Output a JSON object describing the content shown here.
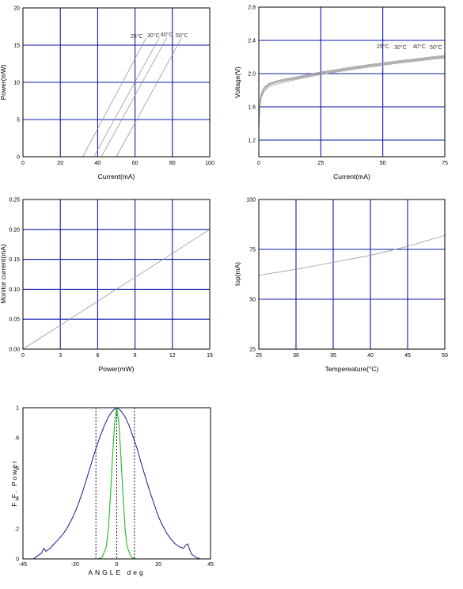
{
  "chart_data": [
    {
      "type": "line",
      "xlabel": "Current(mA)",
      "ylabel": "Power(mW)",
      "xlim": [
        0,
        100
      ],
      "ylim": [
        0,
        20
      ],
      "xticks": [
        "0",
        "20",
        "40",
        "60",
        "80",
        "100"
      ],
      "yticks": [
        "0",
        "5",
        "10",
        "15",
        "20"
      ],
      "series": [
        {
          "name": "25°C",
          "x": [
            32,
            66
          ],
          "y": [
            0,
            16
          ]
        },
        {
          "name": "30°C",
          "x": [
            38,
            73
          ],
          "y": [
            0,
            16
          ]
        },
        {
          "name": "40°C",
          "x": [
            42,
            77
          ],
          "y": [
            0,
            16
          ]
        },
        {
          "name": "50°C",
          "x": [
            50,
            85
          ],
          "y": [
            0,
            16
          ]
        }
      ]
    },
    {
      "type": "line",
      "xlabel": "Current(mA)",
      "ylabel": "Voltage(V)",
      "xlim": [
        0,
        75
      ],
      "ylim": [
        1.0,
        2.8
      ],
      "xticks": [
        "0",
        "25",
        "50",
        "75"
      ],
      "yticks": [
        "1.2",
        "1.6",
        "2.0",
        "2.4",
        "2.8"
      ],
      "series": [
        {
          "name": "25°C",
          "x": [
            0,
            0.3,
            0.6,
            1,
            2,
            4,
            8,
            15,
            25,
            40,
            55,
            75
          ],
          "y": [
            1.35,
            1.6,
            1.7,
            1.76,
            1.83,
            1.88,
            1.92,
            1.96,
            2.02,
            2.09,
            2.15,
            2.22
          ]
        },
        {
          "name": "30°C",
          "x": [
            0,
            0.3,
            0.6,
            1,
            2,
            4,
            8,
            15,
            25,
            40,
            55,
            75
          ],
          "y": [
            1.34,
            1.58,
            1.68,
            1.75,
            1.82,
            1.87,
            1.91,
            1.95,
            2.01,
            2.08,
            2.14,
            2.21
          ]
        },
        {
          "name": "40°C",
          "x": [
            0,
            0.3,
            0.6,
            1,
            2,
            4,
            8,
            15,
            25,
            40,
            55,
            75
          ],
          "y": [
            1.33,
            1.56,
            1.66,
            1.73,
            1.8,
            1.86,
            1.9,
            1.94,
            2.0,
            2.07,
            2.13,
            2.2
          ]
        },
        {
          "name": "50°C",
          "x": [
            0,
            0.3,
            0.6,
            1,
            2,
            4,
            8,
            15,
            25,
            40,
            55,
            75
          ],
          "y": [
            1.32,
            1.54,
            1.64,
            1.71,
            1.78,
            1.84,
            1.88,
            1.93,
            1.99,
            2.06,
            2.12,
            2.19
          ]
        }
      ]
    },
    {
      "type": "line",
      "xlabel": "Power(mW)",
      "ylabel": "Monitor current(mA)",
      "xlim": [
        0,
        15
      ],
      "ylim": [
        0,
        0.25
      ],
      "xticks": [
        "0",
        "3",
        "6",
        "9",
        "12",
        "15"
      ],
      "yticks": [
        "0.00",
        "0.05",
        "0.10",
        "0.15",
        "0.20",
        "0.25"
      ],
      "series": [
        {
          "x": [
            0,
            15
          ],
          "y": [
            0,
            0.2
          ]
        }
      ]
    },
    {
      "type": "line",
      "xlabel": "Tempereature(°C)",
      "ylabel": "Iop(mA)",
      "xlim": [
        25,
        50
      ],
      "ylim": [
        25,
        100
      ],
      "xticks": [
        "25",
        "30",
        "35",
        "40",
        "45",
        "50"
      ],
      "yticks": [
        "25",
        "50",
        "75",
        "100"
      ],
      "series": [
        {
          "x": [
            25,
            30,
            35,
            40,
            45,
            50
          ],
          "y": [
            62,
            65,
            68.5,
            72,
            76.5,
            82
          ]
        }
      ]
    },
    {
      "type": "line",
      "xlabel": "ANGLE deg",
      "ylabel": "F.F. Power",
      "xlim": [
        -45,
        45
      ],
      "ylim": [
        0,
        1
      ],
      "xticks": [
        "-45",
        "-20",
        "0",
        "20",
        "45"
      ],
      "yticks": [
        "0",
        ".2",
        ".4",
        ".6",
        ".8",
        "1"
      ],
      "vlines": [
        -10,
        0,
        8.5
      ],
      "series": [
        {
          "x": [
            -43,
            -40,
            -38,
            -36,
            -35,
            -34,
            -32,
            -30,
            -28,
            -26,
            -24,
            -22,
            -20,
            -18,
            -16,
            -14,
            -12,
            -10,
            -8,
            -6,
            -4,
            -2,
            0,
            2,
            4,
            6,
            8,
            10,
            12,
            14,
            16,
            18,
            20,
            22,
            24,
            26,
            28,
            30,
            32,
            33,
            34,
            35,
            36,
            38,
            40,
            43
          ],
          "y": [
            0,
            0,
            0.02,
            0.04,
            0.07,
            0.05,
            0.07,
            0.1,
            0.13,
            0.16,
            0.2,
            0.25,
            0.31,
            0.38,
            0.46,
            0.55,
            0.64,
            0.73,
            0.81,
            0.88,
            0.94,
            0.98,
            1.0,
            0.98,
            0.94,
            0.88,
            0.8,
            0.72,
            0.62,
            0.53,
            0.44,
            0.36,
            0.28,
            0.22,
            0.17,
            0.13,
            0.1,
            0.08,
            0.07,
            0.09,
            0.1,
            0.06,
            0.03,
            0.01,
            0,
            0
          ]
        },
        {
          "x": [
            -9,
            -7,
            -5,
            -4,
            -3,
            -2,
            -1,
            0,
            1,
            2,
            3,
            4,
            5,
            7,
            9
          ],
          "y": [
            0,
            0.01,
            0.08,
            0.2,
            0.42,
            0.68,
            0.9,
            1.0,
            0.9,
            0.68,
            0.42,
            0.2,
            0.08,
            0.01,
            0
          ]
        }
      ]
    }
  ]
}
